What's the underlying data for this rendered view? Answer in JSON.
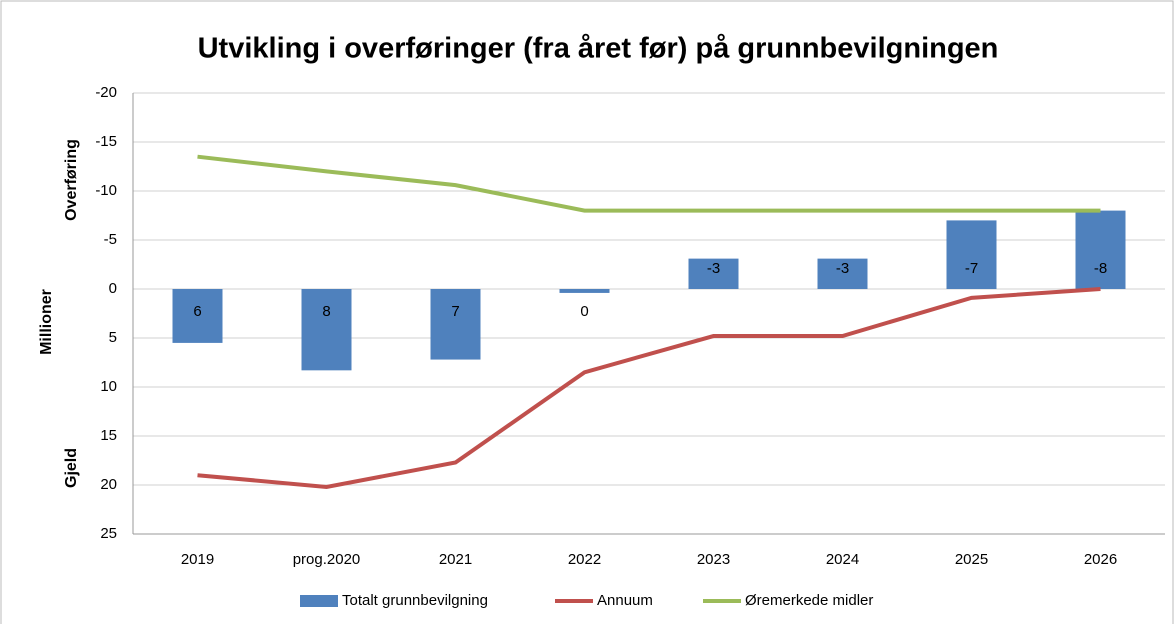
{
  "chart_data": {
    "type": "bar",
    "title": "Utvikling i overføringer (fra året før) på grunnbevilgningen",
    "y_axis_labels": [
      "Overføring",
      "Millioner",
      "Gjeld"
    ],
    "categories": [
      "2019",
      "prog.2020",
      "2021",
      "2022",
      "2023",
      "2024",
      "2025",
      "2026"
    ],
    "series": [
      {
        "name": "Totalt grunnbevilgning",
        "type": "bar",
        "color": "#4f81bd",
        "values": [
          5.5,
          8.3,
          7.2,
          0.4,
          -3.1,
          -3.1,
          -7,
          -8
        ],
        "value_labels": [
          "6",
          "8",
          "7",
          "0",
          "-3",
          "-3",
          "-7",
          "-8"
        ]
      },
      {
        "name": "Annuum",
        "type": "line",
        "color": "#c0504d",
        "values": [
          19,
          20.2,
          17.7,
          8.5,
          4.8,
          4.8,
          0.9,
          0
        ]
      },
      {
        "name": "Øremerkede midler",
        "type": "line",
        "color": "#9bbb59",
        "values": [
          -13.5,
          -12,
          -10.6,
          -8,
          -8,
          -8,
          -8,
          -8
        ]
      }
    ],
    "ylim": [
      -20,
      25
    ],
    "y_inverted": true,
    "yticks": [
      -20,
      -15,
      -10,
      -5,
      0,
      5,
      10,
      15,
      20,
      25
    ],
    "grid": true,
    "legend": "bottom"
  }
}
